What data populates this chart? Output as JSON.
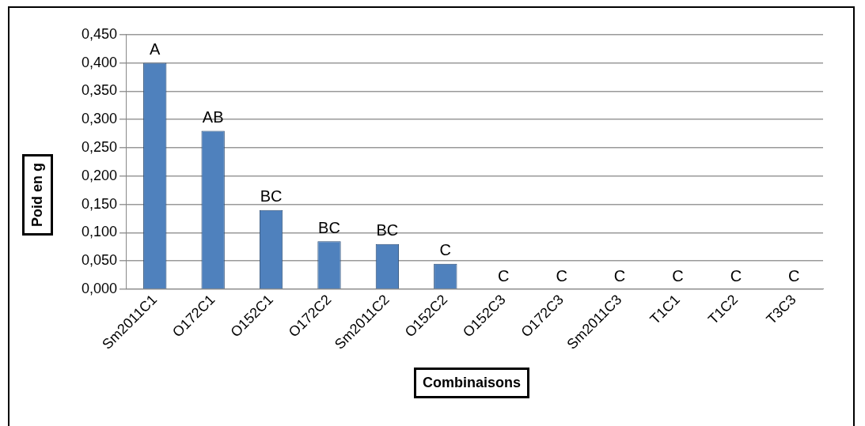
{
  "chart_data": {
    "type": "bar",
    "xlabel": "Combinaisons",
    "ylabel": "Poid en g",
    "categories": [
      "Sm2011C1",
      "O172C1",
      "O152C1",
      "O172C2",
      "Sm2011C2",
      "O152C2",
      "O152C3",
      "O172C3",
      "Sm2011C3",
      "T1C1",
      "T1C2",
      "T3C3"
    ],
    "values": [
      0.4,
      0.28,
      0.14,
      0.085,
      0.08,
      0.045,
      0,
      0,
      0,
      0,
      0,
      0
    ],
    "color": "#4f81bd",
    "ylim": [
      0,
      0.45
    ],
    "yticks": [
      {
        "value": 0,
        "label": "0,000"
      },
      {
        "value": 0.05,
        "label": "0,050"
      },
      {
        "value": 0.1,
        "label": "0,100"
      },
      {
        "value": 0.15,
        "label": "0,150"
      },
      {
        "value": 0.2,
        "label": "0,200"
      },
      {
        "value": 0.25,
        "label": "0,250"
      },
      {
        "value": 0.3,
        "label": "0,300"
      },
      {
        "value": 0.35,
        "label": "0,350"
      },
      {
        "value": 0.4,
        "label": "0,400"
      },
      {
        "value": 0.45,
        "label": "0,450"
      }
    ],
    "grid": "y",
    "legend": false,
    "annotations": [
      {
        "text": "A",
        "x": "Sm2011C1",
        "y": 0.4
      },
      {
        "text": "AB",
        "x": "O172C1",
        "y": 0.28
      },
      {
        "text": "BC",
        "x": "O152C1",
        "y": 0.14
      },
      {
        "text": "BC",
        "x": "O172C2",
        "y": 0.085
      },
      {
        "text": "BC",
        "x": "Sm2011C2",
        "y": 0.08
      },
      {
        "text": "C",
        "x": "O152C2",
        "y": 0.045
      },
      {
        "text": "C",
        "x": "O152C3",
        "y": 0
      },
      {
        "text": "C",
        "x": "O172C3",
        "y": 0
      },
      {
        "text": "C",
        "x": "Sm2011C3",
        "y": 0
      },
      {
        "text": "C",
        "x": "T1C1",
        "y": 0
      },
      {
        "text": "C",
        "x": "T1C2",
        "y": 0
      },
      {
        "text": "C",
        "x": "T3C3",
        "y": 0
      }
    ]
  }
}
